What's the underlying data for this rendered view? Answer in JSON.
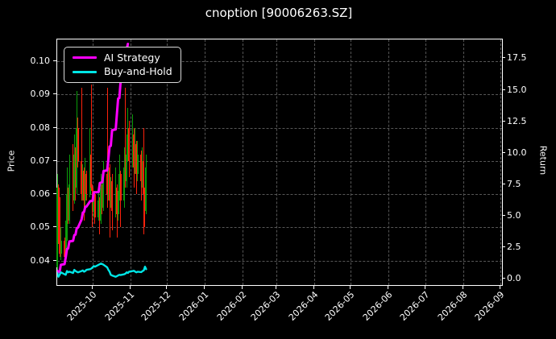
{
  "window": {
    "title": "cnoption [90006263.SZ]"
  },
  "legend": {
    "entries": [
      {
        "label": "AI Strategy",
        "color": "#ff00ff"
      },
      {
        "label": "Buy-and-Hold",
        "color": "#00e6e6"
      }
    ]
  },
  "colors": {
    "background": "#000000",
    "text": "#ffffff",
    "grid": "#565656",
    "spine": "#ffffff",
    "candle_up": "#0b9e0b",
    "candle_down": "#fd220c"
  },
  "chart_data": {
    "type": "candlestick+line",
    "title": "cnoption [90006263.SZ]",
    "grid": true,
    "legend_position": "upper left",
    "x_axis": {
      "range": [
        "2025-09-02",
        "2026-09-02"
      ],
      "tick_labels": [
        "2025-10",
        "2025-11",
        "2025-12",
        "2026-01",
        "2026-02",
        "2026-03",
        "2026-04",
        "2026-05",
        "2026-06",
        "2026-07",
        "2026-08",
        "2026-09"
      ]
    },
    "price_axis": {
      "label": "Price",
      "ticks": [
        0.04,
        0.05,
        0.06,
        0.07,
        0.08,
        0.09,
        0.1
      ],
      "range": [
        0.0326,
        0.1066
      ]
    },
    "return_axis": {
      "label": "Return",
      "ticks": [
        0.0,
        2.5,
        5.0,
        7.5,
        10.0,
        12.5,
        15.0,
        17.5
      ],
      "range": [
        -0.51,
        19.0
      ]
    },
    "candles": [
      [
        "2025-09-02",
        0.038,
        0.066,
        0.036,
        0.062
      ],
      [
        "2025-09-03",
        0.062,
        0.063,
        0.045,
        0.048
      ],
      [
        "2025-09-04",
        0.048,
        0.059,
        0.041,
        0.042
      ],
      [
        "2025-09-05",
        0.042,
        0.05,
        0.04,
        0.046
      ],
      [
        "2025-09-08",
        0.046,
        0.047,
        0.039,
        0.041
      ],
      [
        "2025-09-09",
        0.041,
        0.052,
        0.04,
        0.047
      ],
      [
        "2025-09-10",
        0.047,
        0.068,
        0.046,
        0.06
      ],
      [
        "2025-09-11",
        0.06,
        0.062,
        0.051,
        0.052
      ],
      [
        "2025-09-12",
        0.052,
        0.072,
        0.051,
        0.063
      ],
      [
        "2025-09-15",
        0.063,
        0.075,
        0.055,
        0.058
      ],
      [
        "2025-09-16",
        0.058,
        0.078,
        0.057,
        0.072
      ],
      [
        "2025-09-17",
        0.072,
        0.074,
        0.058,
        0.062
      ],
      [
        "2025-09-18",
        0.062,
        0.091,
        0.06,
        0.08
      ],
      [
        "2025-09-19",
        0.08,
        0.083,
        0.068,
        0.07
      ],
      [
        "2025-09-22",
        0.07,
        0.092,
        0.058,
        0.06
      ],
      [
        "2025-09-23",
        0.06,
        0.069,
        0.058,
        0.067
      ],
      [
        "2025-09-24",
        0.067,
        0.068,
        0.052,
        0.058
      ],
      [
        "2025-09-25",
        0.058,
        0.071,
        0.056,
        0.066
      ],
      [
        "2025-09-26",
        0.066,
        0.067,
        0.058,
        0.06
      ],
      [
        "2025-09-29",
        0.06,
        0.08,
        0.059,
        0.072
      ],
      [
        "2025-09-30",
        0.072,
        0.093,
        0.061,
        0.062
      ],
      [
        "2025-10-01",
        0.062,
        0.063,
        0.05,
        0.055
      ],
      [
        "2025-10-02",
        0.055,
        0.061,
        0.053,
        0.06
      ],
      [
        "2025-10-03",
        0.06,
        0.061,
        0.051,
        0.053
      ],
      [
        "2025-10-06",
        0.053,
        0.062,
        0.052,
        0.058
      ],
      [
        "2025-10-07",
        0.058,
        0.059,
        0.048,
        0.052
      ],
      [
        "2025-10-08",
        0.052,
        0.066,
        0.051,
        0.062
      ],
      [
        "2025-10-09",
        0.062,
        0.063,
        0.054,
        0.056
      ],
      [
        "2025-10-10",
        0.056,
        0.07,
        0.055,
        0.066
      ],
      [
        "2025-10-13",
        0.066,
        0.092,
        0.056,
        0.06
      ],
      [
        "2025-10-14",
        0.06,
        0.069,
        0.058,
        0.068
      ],
      [
        "2025-10-15",
        0.068,
        0.069,
        0.047,
        0.058
      ],
      [
        "2025-10-16",
        0.058,
        0.065,
        0.056,
        0.064
      ],
      [
        "2025-10-17",
        0.064,
        0.066,
        0.049,
        0.055
      ],
      [
        "2025-10-20",
        0.055,
        0.068,
        0.053,
        0.062
      ],
      [
        "2025-10-21",
        0.062,
        0.063,
        0.047,
        0.054
      ],
      [
        "2025-10-22",
        0.054,
        0.061,
        0.052,
        0.06
      ],
      [
        "2025-10-23",
        0.06,
        0.072,
        0.058,
        0.066
      ],
      [
        "2025-10-24",
        0.066,
        0.067,
        0.05,
        0.058
      ],
      [
        "2025-10-27",
        0.058,
        0.074,
        0.056,
        0.068
      ],
      [
        "2025-10-28",
        0.068,
        0.092,
        0.062,
        0.064
      ],
      [
        "2025-10-29",
        0.064,
        0.078,
        0.062,
        0.072
      ],
      [
        "2025-10-30",
        0.072,
        0.086,
        0.07,
        0.08
      ],
      [
        "2025-10-31",
        0.08,
        0.082,
        0.065,
        0.07
      ],
      [
        "2025-11-03",
        0.07,
        0.084,
        0.068,
        0.078
      ],
      [
        "2025-11-04",
        0.078,
        0.08,
        0.062,
        0.068
      ],
      [
        "2025-11-05",
        0.068,
        0.08,
        0.066,
        0.075
      ],
      [
        "2025-11-06",
        0.075,
        0.076,
        0.06,
        0.066
      ],
      [
        "2025-11-07",
        0.066,
        0.076,
        0.064,
        0.072
      ],
      [
        "2025-11-10",
        0.072,
        0.073,
        0.058,
        0.064
      ],
      [
        "2025-11-11",
        0.064,
        0.074,
        0.062,
        0.07
      ],
      [
        "2025-11-12",
        0.07,
        0.08,
        0.048,
        0.06
      ],
      [
        "2025-11-13",
        0.06,
        0.062,
        0.05,
        0.055
      ],
      [
        "2025-11-14",
        0.055,
        0.072,
        0.054,
        0.068
      ]
    ],
    "series": [
      {
        "name": "AI Strategy",
        "color": "#ff00ff",
        "axis": "return",
        "points": [
          [
            "2025-09-02",
            0.62
          ],
          [
            "2025-09-03",
            0.5
          ],
          [
            "2025-09-04",
            0.55
          ],
          [
            "2025-09-05",
            1.1
          ],
          [
            "2025-09-08",
            1.15
          ],
          [
            "2025-09-09",
            1.7
          ],
          [
            "2025-09-10",
            2.35
          ],
          [
            "2025-09-11",
            2.4
          ],
          [
            "2025-09-12",
            2.95
          ],
          [
            "2025-09-15",
            3.0
          ],
          [
            "2025-09-16",
            3.45
          ],
          [
            "2025-09-17",
            3.5
          ],
          [
            "2025-09-18",
            4.0
          ],
          [
            "2025-09-19",
            4.05
          ],
          [
            "2025-09-22",
            4.7
          ],
          [
            "2025-09-23",
            5.25
          ],
          [
            "2025-09-24",
            5.3
          ],
          [
            "2025-09-25",
            5.7
          ],
          [
            "2025-09-26",
            5.72
          ],
          [
            "2025-09-29",
            6.15
          ],
          [
            "2025-10-01",
            6.18
          ],
          [
            "2025-10-02",
            6.85
          ],
          [
            "2025-10-06",
            6.88
          ],
          [
            "2025-10-07",
            7.6
          ],
          [
            "2025-10-09",
            7.65
          ],
          [
            "2025-10-10",
            8.55
          ],
          [
            "2025-10-13",
            8.6
          ],
          [
            "2025-10-14",
            9.5
          ],
          [
            "2025-10-15",
            10.5
          ],
          [
            "2025-10-16",
            10.55
          ],
          [
            "2025-10-17",
            11.8
          ],
          [
            "2025-10-20",
            11.85
          ],
          [
            "2025-10-21",
            13.1
          ],
          [
            "2025-10-22",
            14.3
          ],
          [
            "2025-10-23",
            14.35
          ],
          [
            "2025-10-24",
            15.6
          ],
          [
            "2025-10-27",
            16.9
          ],
          [
            "2025-10-28",
            17.05
          ],
          [
            "2025-10-29",
            18.2
          ],
          [
            "2025-10-30",
            18.65
          ]
        ]
      },
      {
        "name": "Buy-and-Hold",
        "color": "#00e6e6",
        "axis": "return",
        "points": [
          [
            "2025-09-02",
            0.45
          ],
          [
            "2025-09-03",
            0.15
          ],
          [
            "2025-09-04",
            0.3
          ],
          [
            "2025-09-05",
            0.5
          ],
          [
            "2025-09-08",
            0.35
          ],
          [
            "2025-09-09",
            0.3
          ],
          [
            "2025-09-10",
            0.6
          ],
          [
            "2025-09-11",
            0.5
          ],
          [
            "2025-09-12",
            0.55
          ],
          [
            "2025-09-15",
            0.45
          ],
          [
            "2025-09-16",
            0.7
          ],
          [
            "2025-09-17",
            0.6
          ],
          [
            "2025-09-18",
            0.55
          ],
          [
            "2025-09-19",
            0.5
          ],
          [
            "2025-09-22",
            0.6
          ],
          [
            "2025-09-23",
            0.65
          ],
          [
            "2025-09-24",
            0.55
          ],
          [
            "2025-09-25",
            0.6
          ],
          [
            "2025-09-26",
            0.7
          ],
          [
            "2025-09-29",
            0.75
          ],
          [
            "2025-09-30",
            0.8
          ],
          [
            "2025-10-01",
            0.9
          ],
          [
            "2025-10-02",
            1.0
          ],
          [
            "2025-10-03",
            0.95
          ],
          [
            "2025-10-06",
            1.1
          ],
          [
            "2025-10-07",
            1.15
          ],
          [
            "2025-10-08",
            1.2
          ],
          [
            "2025-10-09",
            1.15
          ],
          [
            "2025-10-10",
            1.1
          ],
          [
            "2025-10-13",
            0.9
          ],
          [
            "2025-10-14",
            0.7
          ],
          [
            "2025-10-15",
            0.55
          ],
          [
            "2025-10-16",
            0.3
          ],
          [
            "2025-10-17",
            0.25
          ],
          [
            "2025-10-20",
            0.15
          ],
          [
            "2025-10-21",
            0.2
          ],
          [
            "2025-10-22",
            0.25
          ],
          [
            "2025-10-23",
            0.3
          ],
          [
            "2025-10-24",
            0.28
          ],
          [
            "2025-10-27",
            0.35
          ],
          [
            "2025-10-28",
            0.4
          ],
          [
            "2025-10-29",
            0.5
          ],
          [
            "2025-10-30",
            0.45
          ],
          [
            "2025-10-31",
            0.55
          ],
          [
            "2025-11-03",
            0.6
          ],
          [
            "2025-11-04",
            0.62
          ],
          [
            "2025-11-05",
            0.55
          ],
          [
            "2025-11-06",
            0.5
          ],
          [
            "2025-11-07",
            0.55
          ],
          [
            "2025-11-10",
            0.52
          ],
          [
            "2025-11-11",
            0.6
          ],
          [
            "2025-11-12",
            0.65
          ],
          [
            "2025-11-13",
            0.95
          ],
          [
            "2025-11-14",
            0.75
          ]
        ]
      }
    ]
  }
}
